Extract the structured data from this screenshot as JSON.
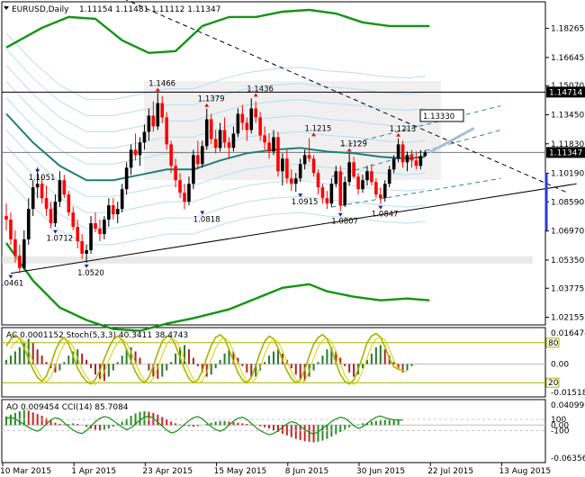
{
  "window": {
    "title_symbol": "EURUSD,Daily",
    "ohlc": "1.11154 1.11481 1.11112 1.11347"
  },
  "colors": {
    "bull": "#000000",
    "bear": "#ff0000",
    "ma_teal": "#1e7f74",
    "envelope_green": "#129412",
    "band_lines": "#b9dfe8",
    "hline_current": "#000000",
    "price_tag_bg": "#000000",
    "price_tag_blue": "#2b3ad6",
    "stoch": "#a5b400",
    "ac_bars": "#aa2222",
    "cci": "#129412"
  },
  "price_axis": {
    "ticks": [
      "1.18265",
      "1.16645",
      "1.15070",
      "1.13450",
      "1.11830",
      "1.10190",
      "1.08590",
      "1.06970",
      "1.05350",
      "1.03775",
      "1.02155"
    ],
    "tagged": [
      "1.14714",
      "1.11347"
    ],
    "current_price": "1.11347",
    "marker_box": "1.13330"
  },
  "price_labels": [
    {
      "text": "1.1466",
      "t": 34,
      "p": 1.1466
    },
    {
      "text": "1.1379",
      "t": 45,
      "p": 1.1379
    },
    {
      "text": "1.1436",
      "t": 56,
      "p": 1.1436
    },
    {
      "text": "1.1215",
      "t": 69,
      "p": 1.1215
    },
    {
      "text": "1.1129",
      "t": 77,
      "p": 1.1129
    },
    {
      "text": "1.1213",
      "t": 88,
      "p": 1.1213
    },
    {
      "text": "1.1051",
      "t": 7,
      "p": 1.1051
    },
    {
      "text": "1.0712",
      "t": 11,
      "p": 1.0712
    },
    {
      "text": "1.0520",
      "t": 18,
      "p": 1.052
    },
    {
      "text": ".0461",
      "t": 1,
      "p": 1.0461
    },
    {
      "text": "1.0818",
      "t": 44,
      "p": 1.0818
    },
    {
      "text": "1.0915",
      "t": 66,
      "p": 1.0915
    },
    {
      "text": "1.0807",
      "t": 75,
      "p": 1.0807
    },
    {
      "text": "1.0847",
      "t": 84,
      "p": 1.0847
    }
  ],
  "date_axis": [
    "10 Mar 2015",
    "1 Apr 2015",
    "23 Apr 2015",
    "15 May 2015",
    "8 Jun 2015",
    "30 Jun 2015",
    "22 Jul 2015",
    "13 Aug 2015"
  ],
  "ac_panel": {
    "header": "AC 0.0001152  Stoch(5,3,3) 40.3411 38.4743",
    "ticks": [
      "0.016474",
      "0.00",
      "-0.015182"
    ],
    "stoch_levels": [
      "80",
      "20"
    ]
  },
  "ao_panel": {
    "header": "AO 0.009454  CCI(14) 85.7084",
    "ticks": [
      "0.040996",
      "100",
      "0.00",
      "-100",
      "-0.063563"
    ]
  },
  "chart_data": {
    "type": "candlestick",
    "symbol": "EURUSD",
    "timeframe": "Daily",
    "ohlc": [
      [
        1.078,
        1.085,
        1.07,
        1.076
      ],
      [
        1.076,
        1.08,
        1.062,
        1.065
      ],
      [
        1.065,
        1.07,
        1.052,
        1.056
      ],
      [
        1.056,
        1.062,
        1.0461,
        1.049
      ],
      [
        1.049,
        1.07,
        1.048,
        1.065
      ],
      [
        1.065,
        1.088,
        1.062,
        1.082
      ],
      [
        1.082,
        1.098,
        1.078,
        1.094
      ],
      [
        1.094,
        1.1051,
        1.088,
        1.096
      ],
      [
        1.096,
        1.1,
        1.085,
        1.088
      ],
      [
        1.088,
        1.095,
        1.078,
        1.082
      ],
      [
        1.082,
        1.086,
        1.0712,
        1.074
      ],
      [
        1.074,
        1.09,
        1.072,
        1.086
      ],
      [
        1.086,
        1.103,
        1.083,
        1.098
      ],
      [
        1.098,
        1.101,
        1.088,
        1.09
      ],
      [
        1.09,
        1.092,
        1.078,
        1.08
      ],
      [
        1.08,
        1.083,
        1.07,
        1.072
      ],
      [
        1.072,
        1.076,
        1.06,
        1.064
      ],
      [
        1.064,
        1.068,
        1.054,
        1.057
      ],
      [
        1.057,
        1.062,
        1.052,
        1.059
      ],
      [
        1.059,
        1.078,
        1.057,
        1.074
      ],
      [
        1.074,
        1.08,
        1.069,
        1.071
      ],
      [
        1.071,
        1.076,
        1.064,
        1.068
      ],
      [
        1.068,
        1.078,
        1.065,
        1.076
      ],
      [
        1.076,
        1.088,
        1.072,
        1.084
      ],
      [
        1.084,
        1.088,
        1.076,
        1.079
      ],
      [
        1.079,
        1.086,
        1.074,
        1.082
      ],
      [
        1.082,
        1.096,
        1.08,
        1.093
      ],
      [
        1.093,
        1.108,
        1.09,
        1.105
      ],
      [
        1.105,
        1.118,
        1.101,
        1.115
      ],
      [
        1.115,
        1.124,
        1.109,
        1.112
      ],
      [
        1.112,
        1.122,
        1.106,
        1.119
      ],
      [
        1.119,
        1.129,
        1.115,
        1.125
      ],
      [
        1.125,
        1.138,
        1.12,
        1.134
      ],
      [
        1.134,
        1.142,
        1.125,
        1.128
      ],
      [
        1.128,
        1.1466,
        1.126,
        1.141
      ],
      [
        1.141,
        1.145,
        1.13,
        1.133
      ],
      [
        1.133,
        1.136,
        1.115,
        1.118
      ],
      [
        1.118,
        1.12,
        1.102,
        1.106
      ],
      [
        1.106,
        1.11,
        1.094,
        1.098
      ],
      [
        1.098,
        1.102,
        1.088,
        1.091
      ],
      [
        1.091,
        1.096,
        1.0818,
        1.086
      ],
      [
        1.086,
        1.1,
        1.084,
        1.096
      ],
      [
        1.096,
        1.115,
        1.093,
        1.112
      ],
      [
        1.112,
        1.12,
        1.104,
        1.107
      ],
      [
        1.107,
        1.12,
        1.105,
        1.117
      ],
      [
        1.117,
        1.1379,
        1.115,
        1.132
      ],
      [
        1.132,
        1.135,
        1.118,
        1.121
      ],
      [
        1.121,
        1.126,
        1.113,
        1.116
      ],
      [
        1.116,
        1.13,
        1.114,
        1.126
      ],
      [
        1.126,
        1.133,
        1.116,
        1.119
      ],
      [
        1.119,
        1.122,
        1.11,
        1.116
      ],
      [
        1.116,
        1.128,
        1.114,
        1.124
      ],
      [
        1.124,
        1.138,
        1.122,
        1.135
      ],
      [
        1.135,
        1.14,
        1.126,
        1.13
      ],
      [
        1.13,
        1.133,
        1.12,
        1.126
      ],
      [
        1.126,
        1.1436,
        1.124,
        1.138
      ],
      [
        1.138,
        1.142,
        1.13,
        1.133
      ],
      [
        1.133,
        1.136,
        1.12,
        1.123
      ],
      [
        1.123,
        1.128,
        1.115,
        1.119
      ],
      [
        1.119,
        1.124,
        1.11,
        1.114
      ],
      [
        1.114,
        1.126,
        1.112,
        1.122
      ],
      [
        1.122,
        1.125,
        1.1,
        1.103
      ],
      [
        1.103,
        1.113,
        1.095,
        1.11
      ],
      [
        1.11,
        1.115,
        1.096,
        1.099
      ],
      [
        1.099,
        1.104,
        1.092,
        1.096
      ],
      [
        1.096,
        1.102,
        1.0915,
        1.099
      ],
      [
        1.099,
        1.11,
        1.097,
        1.107
      ],
      [
        1.107,
        1.115,
        1.104,
        1.112
      ],
      [
        1.112,
        1.1215,
        1.108,
        1.11
      ],
      [
        1.11,
        1.112,
        1.1,
        1.102
      ],
      [
        1.102,
        1.104,
        1.09,
        1.094
      ],
      [
        1.094,
        1.096,
        1.085,
        1.088
      ],
      [
        1.088,
        1.092,
        1.082,
        1.085
      ],
      [
        1.085,
        1.099,
        1.083,
        1.096
      ],
      [
        1.096,
        1.106,
        1.094,
        1.103
      ],
      [
        1.103,
        1.106,
        1.0807,
        1.084
      ],
      [
        1.084,
        1.1,
        1.083,
        1.097
      ],
      [
        1.097,
        1.1129,
        1.095,
        1.108
      ],
      [
        1.108,
        1.111,
        1.099,
        1.1
      ],
      [
        1.1,
        1.102,
        1.09,
        1.093
      ],
      [
        1.093,
        1.101,
        1.091,
        1.098
      ],
      [
        1.098,
        1.106,
        1.095,
        1.103
      ],
      [
        1.103,
        1.107,
        1.095,
        1.097
      ],
      [
        1.097,
        1.099,
        1.088,
        1.09
      ],
      [
        1.09,
        1.094,
        1.0847,
        1.088
      ],
      [
        1.088,
        1.098,
        1.086,
        1.096
      ],
      [
        1.096,
        1.106,
        1.094,
        1.104
      ],
      [
        1.104,
        1.112,
        1.102,
        1.11
      ],
      [
        1.11,
        1.1213,
        1.108,
        1.118
      ],
      [
        1.118,
        1.12,
        1.105,
        1.108
      ],
      [
        1.108,
        1.114,
        1.103,
        1.112
      ],
      [
        1.112,
        1.115,
        1.105,
        1.109
      ],
      [
        1.109,
        1.114,
        1.104,
        1.106
      ],
      [
        1.106,
        1.1148,
        1.104,
        1.1115
      ],
      [
        1.11154,
        1.11481,
        1.11112,
        1.11347
      ]
    ],
    "moving_average": [
      [
        0,
        1.135
      ],
      [
        6,
        1.119
      ],
      [
        12,
        1.106
      ],
      [
        18,
        1.098
      ],
      [
        24,
        1.098
      ],
      [
        30,
        1.101
      ],
      [
        36,
        1.104
      ],
      [
        42,
        1.104
      ],
      [
        48,
        1.109
      ],
      [
        54,
        1.113
      ],
      [
        60,
        1.115
      ],
      [
        66,
        1.116
      ],
      [
        72,
        1.114
      ],
      [
        78,
        1.113
      ],
      [
        84,
        1.111
      ],
      [
        90,
        1.11
      ],
      [
        94,
        1.111
      ]
    ],
    "envelope_upper": [
      [
        0,
        1.172
      ],
      [
        8,
        1.183
      ],
      [
        14,
        1.189
      ],
      [
        20,
        1.188
      ],
      [
        26,
        1.176
      ],
      [
        32,
        1.169
      ],
      [
        38,
        1.17
      ],
      [
        44,
        1.184
      ],
      [
        50,
        1.189
      ],
      [
        56,
        1.189
      ],
      [
        62,
        1.192
      ],
      [
        68,
        1.193
      ],
      [
        74,
        1.191
      ],
      [
        80,
        1.186
      ],
      [
        86,
        1.184
      ],
      [
        92,
        1.184
      ],
      [
        95,
        1.184
      ]
    ],
    "envelope_lower": [
      [
        0,
        1.063
      ],
      [
        6,
        1.042
      ],
      [
        12,
        1.027
      ],
      [
        18,
        1.02
      ],
      [
        24,
        1.015
      ],
      [
        30,
        1.014
      ],
      [
        36,
        1.018
      ],
      [
        42,
        1.021
      ],
      [
        50,
        1.026
      ],
      [
        56,
        1.032
      ],
      [
        62,
        1.038
      ],
      [
        68,
        1.04
      ],
      [
        72,
        1.036
      ],
      [
        78,
        1.033
      ],
      [
        84,
        1.031
      ],
      [
        90,
        1.032
      ],
      [
        95,
        1.031
      ]
    ],
    "trendlines": [
      {
        "name": "descending-dashed",
        "style": "dashed",
        "from": [
          -2,
          1.23
        ],
        "to": [
          126,
          1.091
        ]
      },
      {
        "name": "ascending-support",
        "style": "solid",
        "from": [
          1,
          1.0461
        ],
        "to": [
          128,
          1.096
        ]
      },
      {
        "name": "channel-upper",
        "style": "dashed",
        "from": [
          75,
          1.117
        ],
        "to": [
          111,
          1.1395
        ]
      },
      {
        "name": "channel-mid",
        "style": "dashed",
        "from": [
          73,
          1.1
        ],
        "to": [
          111,
          1.126
        ]
      },
      {
        "name": "channel-lower",
        "style": "dashed",
        "from": [
          73,
          1.083
        ],
        "to": [
          111,
          1.099
        ]
      },
      {
        "name": "blue-projection",
        "style": "solid",
        "from": [
          95,
          1.1135
        ],
        "to": [
          105,
          1.127
        ]
      }
    ],
    "horizontal_levels": [
      1.14714,
      1.11347
    ],
    "ac_values": [
      0.002,
      0.004,
      0.006,
      0.008,
      0.01,
      0.012,
      0.01,
      0.007,
      0.004,
      0.001,
      -0.002,
      -0.004,
      -0.003,
      0.001,
      0.004,
      0.006,
      0.007,
      0.005,
      0.002,
      -0.002,
      -0.005,
      -0.007,
      -0.008,
      -0.006,
      -0.003,
      0.001,
      0.004,
      0.007,
      0.008,
      0.006,
      0.003,
      0.0,
      -0.003,
      -0.006,
      -0.007,
      -0.006,
      -0.003,
      0.001,
      0.005,
      0.008,
      0.009,
      0.007,
      0.003,
      -0.001,
      -0.004,
      -0.006,
      -0.005,
      -0.002,
      0.002,
      0.005,
      0.007,
      0.006,
      0.003,
      -0.001,
      -0.004,
      -0.006,
      -0.006,
      -0.003,
      0.001,
      0.004,
      0.006,
      0.007,
      0.005,
      0.002,
      -0.002,
      -0.005,
      -0.007,
      -0.008,
      -0.006,
      -0.003,
      0.001,
      0.004,
      0.007,
      0.008,
      0.006,
      0.003,
      -0.001,
      -0.004,
      -0.006,
      -0.005,
      -0.002,
      0.002,
      0.005,
      0.008,
      0.009,
      0.007,
      0.004,
      0.001,
      -0.002,
      -0.004,
      -0.003,
      -0.001,
      0.0,
      0.0001152
    ],
    "stoch_values": [
      75,
      85,
      92,
      86,
      72,
      55,
      40,
      28,
      22,
      30,
      48,
      68,
      82,
      88,
      78,
      60,
      42,
      30,
      22,
      18,
      25,
      38,
      56,
      72,
      85,
      90,
      84,
      70,
      52,
      36,
      25,
      20,
      28,
      45,
      65,
      82,
      90,
      88,
      76,
      58,
      40,
      26,
      20,
      24,
      38,
      58,
      76,
      88,
      92,
      86,
      70,
      52,
      35,
      24,
      20,
      28,
      46,
      66,
      82,
      90,
      86,
      72,
      54,
      38,
      26,
      20,
      24,
      40,
      60,
      78,
      88,
      92,
      86,
      70,
      50,
      32,
      22,
      18,
      24,
      40,
      60,
      80,
      90,
      94,
      88,
      74,
      56,
      44,
      40,
      38.4743
    ],
    "ao_values": [
      0.015,
      0.018,
      0.021,
      0.024,
      0.026,
      0.025,
      0.022,
      0.019,
      0.016,
      0.012,
      0.008,
      0.004,
      0.002,
      0.001,
      0.002,
      0.003,
      0.002,
      0.0,
      -0.003,
      -0.006,
      -0.008,
      -0.009,
      -0.008,
      -0.006,
      -0.003,
      0.001,
      0.006,
      0.011,
      0.016,
      0.02,
      0.023,
      0.024,
      0.023,
      0.021,
      0.018,
      0.014,
      0.01,
      0.006,
      0.003,
      0.001,
      -0.001,
      -0.002,
      -0.003,
      -0.002,
      0.0,
      0.002,
      0.004,
      0.006,
      0.007,
      0.007,
      0.006,
      0.005,
      0.004,
      0.003,
      0.002,
      0.001,
      0.0,
      -0.002,
      -0.004,
      -0.006,
      -0.009,
      -0.012,
      -0.015,
      -0.018,
      -0.021,
      -0.024,
      -0.026,
      -0.028,
      -0.029,
      -0.03,
      -0.029,
      -0.027,
      -0.024,
      -0.02,
      -0.016,
      -0.012,
      -0.008,
      -0.004,
      -0.001,
      0.001,
      0.003,
      0.004,
      0.006,
      0.007,
      0.008,
      0.009,
      0.009,
      0.009,
      0.009454
    ],
    "cci_values": [
      120,
      140,
      110,
      60,
      10,
      -40,
      -80,
      -110,
      -60,
      20,
      90,
      130,
      110,
      40,
      -30,
      -90,
      -130,
      -150,
      -100,
      -20,
      60,
      120,
      150,
      130,
      80,
      20,
      -40,
      -80,
      -50,
      20,
      90,
      140,
      160,
      120,
      50,
      -20,
      -90,
      -140,
      -120,
      -60,
      10,
      80,
      130,
      150,
      110,
      40,
      -30,
      -80,
      -110,
      -70,
      0,
      70,
      120,
      140,
      100,
      30,
      -40,
      -100,
      -140,
      -170,
      -150,
      -100,
      -40,
      20,
      60,
      40,
      -20,
      -80,
      -130,
      -160,
      -120,
      -60,
      0,
      60,
      110,
      140,
      120,
      60,
      -10,
      -60,
      -30,
      30,
      90,
      140,
      160,
      130,
      110,
      95,
      90,
      85.7084
    ]
  }
}
